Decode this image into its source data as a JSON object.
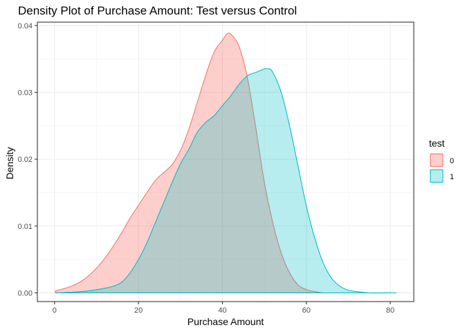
{
  "chart_data": {
    "type": "area",
    "title": "Density Plot of Purchase Amount: Test versus Control",
    "xlabel": "Purchase Amount",
    "ylabel": "Density",
    "xlim": [
      -4.1,
      85.6
    ],
    "ylim": [
      -0.0013,
      0.0405
    ],
    "x_ticks": [
      0,
      20,
      40,
      60,
      80
    ],
    "x_tick_labels": [
      "0",
      "20",
      "40",
      "60",
      "80"
    ],
    "y_ticks": [
      0.0,
      0.01,
      0.02,
      0.03,
      0.04
    ],
    "y_tick_labels": [
      "0.00",
      "0.01",
      "0.02",
      "0.03",
      "0.04"
    ],
    "grid": true,
    "legend": {
      "title": "test",
      "position": "right"
    },
    "series": [
      {
        "name": "0",
        "line_color": "#F8766D",
        "fill_color": "#F8766D",
        "fill_opacity": 0.35,
        "points": [
          [
            0.2,
            0.0003
          ],
          [
            2,
            0.0006
          ],
          [
            4,
            0.001
          ],
          [
            6,
            0.0016
          ],
          [
            8,
            0.0025
          ],
          [
            10,
            0.0037
          ],
          [
            12,
            0.0052
          ],
          [
            14,
            0.007
          ],
          [
            16,
            0.009
          ],
          [
            18,
            0.0112
          ],
          [
            20,
            0.0131
          ],
          [
            22,
            0.015
          ],
          [
            24,
            0.0168
          ],
          [
            26,
            0.018
          ],
          [
            28,
            0.0192
          ],
          [
            30,
            0.0213
          ],
          [
            32,
            0.0245
          ],
          [
            34,
            0.0285
          ],
          [
            36,
            0.0325
          ],
          [
            38,
            0.036
          ],
          [
            40,
            0.0378
          ],
          [
            41,
            0.0387
          ],
          [
            42,
            0.0387
          ],
          [
            44,
            0.0368
          ],
          [
            46,
            0.032
          ],
          [
            48,
            0.0245
          ],
          [
            50,
            0.0165
          ],
          [
            52,
            0.0105
          ],
          [
            54,
            0.006
          ],
          [
            56,
            0.003
          ],
          [
            58,
            0.0012
          ],
          [
            60,
            0.0005
          ],
          [
            62,
            0.0002
          ],
          [
            64,
            0.0
          ]
        ]
      },
      {
        "name": "1",
        "line_color": "#00BFC4",
        "fill_color": "#00BFC4",
        "fill_opacity": 0.28,
        "points": [
          [
            0.2,
            0.0
          ],
          [
            4,
            0.0001
          ],
          [
            8,
            0.0003
          ],
          [
            12,
            0.0007
          ],
          [
            14,
            0.001
          ],
          [
            16,
            0.0016
          ],
          [
            18,
            0.003
          ],
          [
            20,
            0.005
          ],
          [
            22,
            0.0075
          ],
          [
            24,
            0.0105
          ],
          [
            26,
            0.0135
          ],
          [
            28,
            0.0165
          ],
          [
            30,
            0.0193
          ],
          [
            32,
            0.0215
          ],
          [
            34,
            0.024
          ],
          [
            36,
            0.0255
          ],
          [
            38,
            0.0265
          ],
          [
            40,
            0.028
          ],
          [
            42,
            0.0295
          ],
          [
            44,
            0.0312
          ],
          [
            46,
            0.0325
          ],
          [
            48,
            0.033
          ],
          [
            50,
            0.0335
          ],
          [
            51,
            0.0335
          ],
          [
            52,
            0.033
          ],
          [
            54,
            0.03
          ],
          [
            56,
            0.025
          ],
          [
            58,
            0.019
          ],
          [
            60,
            0.013
          ],
          [
            62,
            0.0082
          ],
          [
            64,
            0.0045
          ],
          [
            66,
            0.0022
          ],
          [
            68,
            0.001
          ],
          [
            70,
            0.0004
          ],
          [
            72,
            0.0002
          ],
          [
            75,
            0.0
          ],
          [
            81.5,
            0.0
          ]
        ]
      }
    ]
  }
}
